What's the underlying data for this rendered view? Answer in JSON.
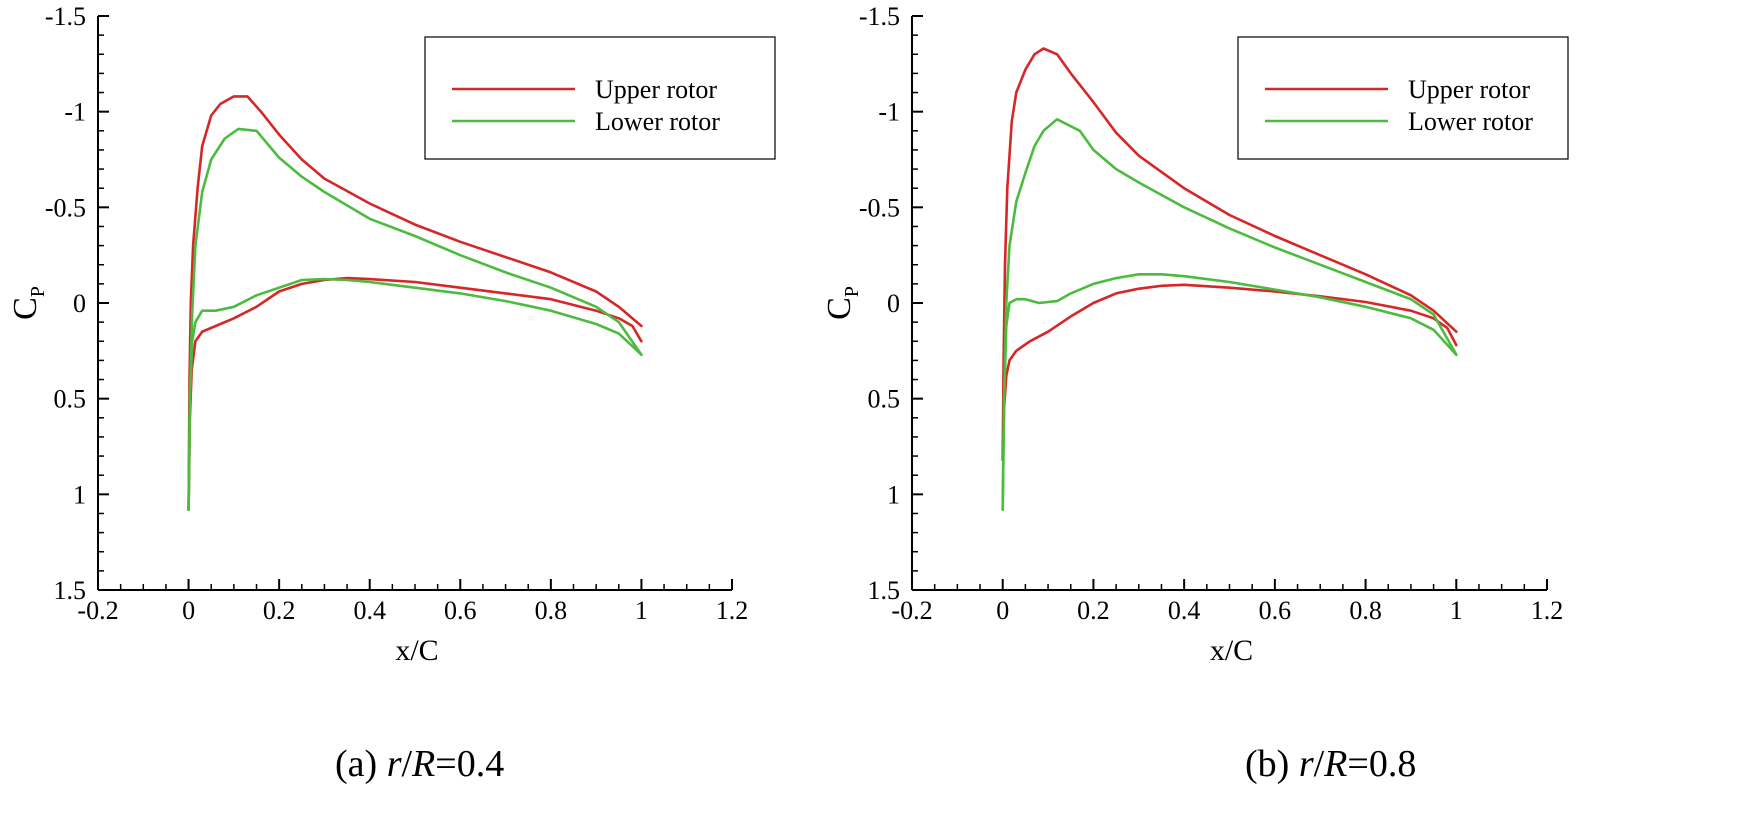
{
  "chart_data": [
    {
      "type": "line",
      "caption": {
        "label": "(a)",
        "r": "r",
        "slash": "/",
        "R": "R",
        "value": "=0.4"
      },
      "xlabel": "x/C",
      "ylabel": {
        "main": "C",
        "sub": "P"
      },
      "xlim": [
        -0.2,
        1.2
      ],
      "ylim": [
        1.5,
        -1.5
      ],
      "y_inverted": true,
      "xticks": [
        "-0.2",
        "0",
        "0.2",
        "0.4",
        "0.6",
        "0.8",
        "1",
        "1.2"
      ],
      "yticks": [
        "-1.5",
        "-1",
        "-0.5",
        "0",
        "0.5",
        "1",
        "1.5"
      ],
      "legend_position": "top-right",
      "series": [
        {
          "name": "Upper rotor",
          "color": "#d62728",
          "upper_surface": [
            [
              0.0,
              1.08
            ],
            [
              0.002,
              0.4
            ],
            [
              0.005,
              0.0
            ],
            [
              0.01,
              -0.3
            ],
            [
              0.02,
              -0.6
            ],
            [
              0.03,
              -0.82
            ],
            [
              0.05,
              -0.98
            ],
            [
              0.07,
              -1.04
            ],
            [
              0.1,
              -1.08
            ],
            [
              0.13,
              -1.08
            ],
            [
              0.16,
              -1.0
            ],
            [
              0.2,
              -0.88
            ],
            [
              0.25,
              -0.75
            ],
            [
              0.3,
              -0.65
            ],
            [
              0.4,
              -0.52
            ],
            [
              0.5,
              -0.41
            ],
            [
              0.6,
              -0.32
            ],
            [
              0.7,
              -0.24
            ],
            [
              0.8,
              -0.16
            ],
            [
              0.9,
              -0.06
            ],
            [
              0.95,
              0.02
            ],
            [
              1.0,
              0.12
            ]
          ],
          "lower_surface": [
            [
              0.0,
              1.08
            ],
            [
              0.003,
              0.6
            ],
            [
              0.007,
              0.35
            ],
            [
              0.015,
              0.2
            ],
            [
              0.03,
              0.15
            ],
            [
              0.06,
              0.12
            ],
            [
              0.1,
              0.08
            ],
            [
              0.15,
              0.02
            ],
            [
              0.2,
              -0.06
            ],
            [
              0.25,
              -0.1
            ],
            [
              0.3,
              -0.12
            ],
            [
              0.35,
              -0.13
            ],
            [
              0.4,
              -0.125
            ],
            [
              0.5,
              -0.11
            ],
            [
              0.6,
              -0.08
            ],
            [
              0.7,
              -0.05
            ],
            [
              0.8,
              -0.02
            ],
            [
              0.9,
              0.04
            ],
            [
              0.95,
              0.08
            ],
            [
              0.98,
              0.12
            ],
            [
              1.0,
              0.2
            ]
          ]
        },
        {
          "name": "Lower rotor",
          "color": "#4cbb3f",
          "upper_surface": [
            [
              0.0,
              1.08
            ],
            [
              0.003,
              0.5
            ],
            [
              0.008,
              0.05
            ],
            [
              0.015,
              -0.3
            ],
            [
              0.03,
              -0.58
            ],
            [
              0.05,
              -0.75
            ],
            [
              0.08,
              -0.86
            ],
            [
              0.11,
              -0.91
            ],
            [
              0.15,
              -0.9
            ],
            [
              0.2,
              -0.76
            ],
            [
              0.25,
              -0.66
            ],
            [
              0.3,
              -0.58
            ],
            [
              0.4,
              -0.44
            ],
            [
              0.5,
              -0.35
            ],
            [
              0.6,
              -0.25
            ],
            [
              0.7,
              -0.16
            ],
            [
              0.8,
              -0.08
            ],
            [
              0.9,
              0.02
            ],
            [
              0.95,
              0.1
            ],
            [
              1.0,
              0.27
            ]
          ],
          "lower_surface": [
            [
              0.0,
              1.08
            ],
            [
              0.003,
              0.5
            ],
            [
              0.008,
              0.2
            ],
            [
              0.015,
              0.1
            ],
            [
              0.03,
              0.04
            ],
            [
              0.06,
              0.04
            ],
            [
              0.1,
              0.02
            ],
            [
              0.15,
              -0.04
            ],
            [
              0.2,
              -0.08
            ],
            [
              0.25,
              -0.12
            ],
            [
              0.3,
              -0.125
            ],
            [
              0.35,
              -0.12
            ],
            [
              0.4,
              -0.11
            ],
            [
              0.5,
              -0.08
            ],
            [
              0.6,
              -0.05
            ],
            [
              0.7,
              -0.01
            ],
            [
              0.8,
              0.04
            ],
            [
              0.9,
              0.11
            ],
            [
              0.95,
              0.16
            ],
            [
              1.0,
              0.27
            ]
          ]
        }
      ]
    },
    {
      "type": "line",
      "caption": {
        "label": "(b)",
        "r": "r",
        "slash": "/",
        "R": "R",
        "value": "=0.8"
      },
      "xlabel": "x/C",
      "ylabel": {
        "main": "C",
        "sub": "P"
      },
      "xlim": [
        -0.2,
        1.2
      ],
      "ylim": [
        1.5,
        -1.5
      ],
      "y_inverted": true,
      "xticks": [
        "-0.2",
        "0",
        "0.2",
        "0.4",
        "0.6",
        "0.8",
        "1",
        "1.2"
      ],
      "yticks": [
        "-1.5",
        "-1",
        "-0.5",
        "0",
        "0.5",
        "1",
        "1.5"
      ],
      "legend_position": "top-right",
      "series": [
        {
          "name": "Upper rotor",
          "color": "#d62728",
          "upper_surface": [
            [
              0.0,
              0.82
            ],
            [
              0.002,
              0.3
            ],
            [
              0.005,
              -0.2
            ],
            [
              0.01,
              -0.6
            ],
            [
              0.02,
              -0.95
            ],
            [
              0.03,
              -1.1
            ],
            [
              0.05,
              -1.22
            ],
            [
              0.07,
              -1.3
            ],
            [
              0.09,
              -1.33
            ],
            [
              0.12,
              -1.3
            ],
            [
              0.15,
              -1.2
            ],
            [
              0.2,
              -1.05
            ],
            [
              0.25,
              -0.89
            ],
            [
              0.3,
              -0.77
            ],
            [
              0.4,
              -0.6
            ],
            [
              0.5,
              -0.46
            ],
            [
              0.6,
              -0.35
            ],
            [
              0.7,
              -0.25
            ],
            [
              0.8,
              -0.15
            ],
            [
              0.9,
              -0.04
            ],
            [
              0.95,
              0.04
            ],
            [
              1.0,
              0.15
            ]
          ],
          "lower_surface": [
            [
              0.0,
              0.82
            ],
            [
              0.003,
              0.55
            ],
            [
              0.008,
              0.38
            ],
            [
              0.015,
              0.3
            ],
            [
              0.03,
              0.25
            ],
            [
              0.06,
              0.2
            ],
            [
              0.1,
              0.15
            ],
            [
              0.15,
              0.07
            ],
            [
              0.2,
              0.0
            ],
            [
              0.25,
              -0.05
            ],
            [
              0.3,
              -0.075
            ],
            [
              0.35,
              -0.09
            ],
            [
              0.4,
              -0.095
            ],
            [
              0.5,
              -0.08
            ],
            [
              0.6,
              -0.06
            ],
            [
              0.7,
              -0.035
            ],
            [
              0.8,
              -0.005
            ],
            [
              0.9,
              0.04
            ],
            [
              0.95,
              0.08
            ],
            [
              0.98,
              0.13
            ],
            [
              1.0,
              0.22
            ]
          ]
        },
        {
          "name": "Lower rotor",
          "color": "#4cbb3f",
          "upper_surface": [
            [
              0.0,
              1.08
            ],
            [
              0.003,
              0.5
            ],
            [
              0.008,
              0.0
            ],
            [
              0.015,
              -0.3
            ],
            [
              0.03,
              -0.53
            ],
            [
              0.05,
              -0.68
            ],
            [
              0.07,
              -0.82
            ],
            [
              0.09,
              -0.9
            ],
            [
              0.12,
              -0.96
            ],
            [
              0.17,
              -0.9
            ],
            [
              0.2,
              -0.8
            ],
            [
              0.25,
              -0.7
            ],
            [
              0.3,
              -0.63
            ],
            [
              0.4,
              -0.5
            ],
            [
              0.5,
              -0.39
            ],
            [
              0.6,
              -0.29
            ],
            [
              0.7,
              -0.2
            ],
            [
              0.8,
              -0.11
            ],
            [
              0.9,
              -0.02
            ],
            [
              0.95,
              0.06
            ],
            [
              1.0,
              0.27
            ]
          ],
          "lower_surface": [
            [
              0.0,
              1.08
            ],
            [
              0.003,
              0.5
            ],
            [
              0.008,
              0.12
            ],
            [
              0.015,
              0.0
            ],
            [
              0.03,
              -0.02
            ],
            [
              0.05,
              -0.02
            ],
            [
              0.08,
              0.0
            ],
            [
              0.12,
              -0.01
            ],
            [
              0.15,
              -0.05
            ],
            [
              0.2,
              -0.1
            ],
            [
              0.25,
              -0.13
            ],
            [
              0.3,
              -0.15
            ],
            [
              0.35,
              -0.15
            ],
            [
              0.4,
              -0.14
            ],
            [
              0.5,
              -0.11
            ],
            [
              0.6,
              -0.07
            ],
            [
              0.7,
              -0.03
            ],
            [
              0.8,
              0.02
            ],
            [
              0.9,
              0.08
            ],
            [
              0.95,
              0.14
            ],
            [
              1.0,
              0.27
            ]
          ]
        }
      ]
    }
  ]
}
